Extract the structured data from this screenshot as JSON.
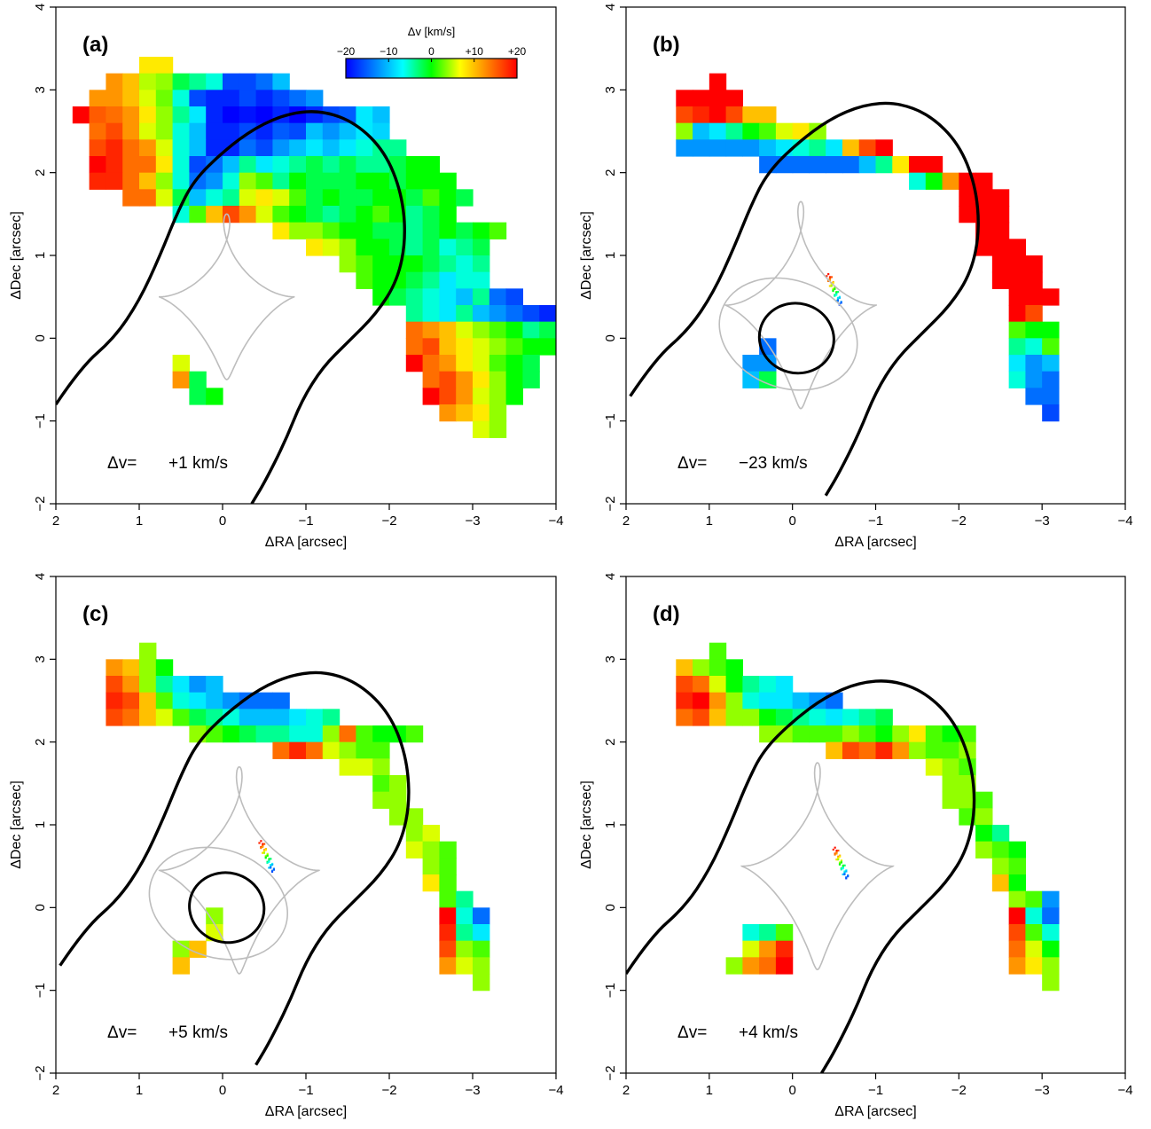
{
  "figure": {
    "xlabel": "ΔRA [arcsec]",
    "ylabel": "ΔDec [arcsec]",
    "x_range": [
      2,
      -4
    ],
    "y_range": [
      -2,
      4
    ],
    "x_ticks": [
      2,
      1,
      0,
      -1,
      -2,
      -3,
      -4
    ],
    "y_ticks": [
      -2,
      -1,
      0,
      1,
      2,
      3,
      4
    ],
    "x_tick_labels": [
      "2",
      "1",
      "0",
      "−1",
      "−2",
      "−3",
      "−4"
    ],
    "y_tick_labels": [
      "−2",
      "−1",
      "0",
      "1",
      "2",
      "3",
      "4"
    ]
  },
  "colorbar": {
    "title": "Δv [km/s]",
    "range": [
      -20,
      20
    ],
    "tick_labels": [
      "−20",
      "−10",
      "0",
      "+10",
      "+20"
    ],
    "tick_values": [
      -20,
      -10,
      0,
      10,
      20
    ],
    "colors": [
      "#0000ff",
      "#0080ff",
      "#00ffff",
      "#00ff00",
      "#ffff00",
      "#ff8000",
      "#ff0000"
    ]
  },
  "panels": [
    {
      "tag": "(a)",
      "dv_label": "Δv=",
      "dv_value": "+1 km/s"
    },
    {
      "tag": "(b)",
      "dv_label": "Δv=",
      "dv_value": "−23 km/s"
    },
    {
      "tag": "(c)",
      "dv_label": "Δv=",
      "dv_value": "+5 km/s"
    },
    {
      "tag": "(d)",
      "dv_label": "Δv=",
      "dv_value": "+4 km/s"
    }
  ],
  "chart_data": [
    {
      "type": "heatmap",
      "panel": "(a)",
      "xlabel": "ΔRA [arcsec]",
      "ylabel": "ΔDec [arcsec]",
      "xlim": [
        2,
        -4
      ],
      "ylim": [
        -2,
        4
      ],
      "cell_size_arcsec": 0.2,
      "velocity_field": [
        {
          "ra": [
            1.8,
            0.6
          ],
          "dec": [
            1.8,
            3.3
          ],
          "v_kms": 18
        },
        {
          "ra": [
            0.6,
            -1.4
          ],
          "dec": [
            1.6,
            3.0
          ],
          "v_kms": -18
        },
        {
          "ra": [
            -1.4,
            -3.3
          ],
          "dec": [
            0.5,
            2.2
          ],
          "v_kms": 0
        },
        {
          "ra": [
            -2.2,
            -3.3
          ],
          "dec": [
            -0.9,
            0.2
          ],
          "v_kms": 12
        },
        {
          "ra": [
            0.6,
            0.0
          ],
          "dec": [
            -0.8,
            -0.2
          ],
          "v_kms": 2
        }
      ],
      "critical_curve": "outer",
      "dv_label": "+1 km/s"
    },
    {
      "type": "heatmap",
      "panel": "(b)",
      "xlabel": "ΔRA [arcsec]",
      "ylabel": "ΔDec [arcsec]",
      "xlim": [
        2,
        -4
      ],
      "ylim": [
        -2,
        4
      ],
      "velocity_field": [
        {
          "ra": [
            1.3,
            -0.6
          ],
          "dec": [
            2.5,
            3.0
          ],
          "v_kms": 20
        },
        {
          "ra": [
            1.3,
            -0.8
          ],
          "dec": [
            2.0,
            2.5
          ],
          "v_kms": -14
        },
        {
          "ra": [
            -0.8,
            -2.9
          ],
          "dec": [
            0.3,
            2.2
          ],
          "v_kms": 20
        },
        {
          "ra": [
            -2.6,
            -3.2
          ],
          "dec": [
            -0.9,
            0.1
          ],
          "v_kms": -14
        },
        {
          "ra": [
            0.5,
            0.0
          ],
          "dec": [
            -0.5,
            -0.1
          ],
          "v_kms": -14
        }
      ],
      "critical_curve": "outer+inner",
      "dv_label": "−23 km/s"
    },
    {
      "type": "heatmap",
      "panel": "(c)",
      "xlabel": "ΔRA [arcsec]",
      "ylabel": "ΔDec [arcsec]",
      "xlim": [
        2,
        -4
      ],
      "ylim": [
        -2,
        4
      ],
      "velocity_field": [
        {
          "ra": [
            1.3,
            0.4
          ],
          "dec": [
            2.1,
            3.0
          ],
          "v_kms": 16
        },
        {
          "ra": [
            0.4,
            -1.3
          ],
          "dec": [
            2.1,
            2.5
          ],
          "v_kms": -12
        },
        {
          "ra": [
            -0.8,
            -3.2
          ],
          "dec": [
            -0.9,
            2.1
          ],
          "v_kms": 4
        },
        {
          "ra": [
            0.5,
            0.0
          ],
          "dec": [
            -0.6,
            -0.1
          ],
          "v_kms": 8
        }
      ],
      "critical_curve": "outer+inner",
      "dv_label": "+5 km/s"
    },
    {
      "type": "heatmap",
      "panel": "(d)",
      "xlabel": "ΔRA [arcsec]",
      "ylabel": "ΔDec [arcsec]",
      "xlim": [
        2,
        -4
      ],
      "ylim": [
        -2,
        4
      ],
      "velocity_field": [
        {
          "ra": [
            1.3,
            0.4
          ],
          "dec": [
            2.1,
            3.0
          ],
          "v_kms": 16
        },
        {
          "ra": [
            0.4,
            -0.5
          ],
          "dec": [
            2.1,
            2.5
          ],
          "v_kms": -12
        },
        {
          "ra": [
            -0.5,
            -3.2
          ],
          "dec": [
            -0.9,
            2.1
          ],
          "v_kms": 4
        },
        {
          "ra": [
            0.6,
            -0.1
          ],
          "dec": [
            -0.7,
            -0.3
          ],
          "v_kms": 10
        }
      ],
      "critical_curve": "outer",
      "dv_label": "+4 km/s"
    }
  ]
}
